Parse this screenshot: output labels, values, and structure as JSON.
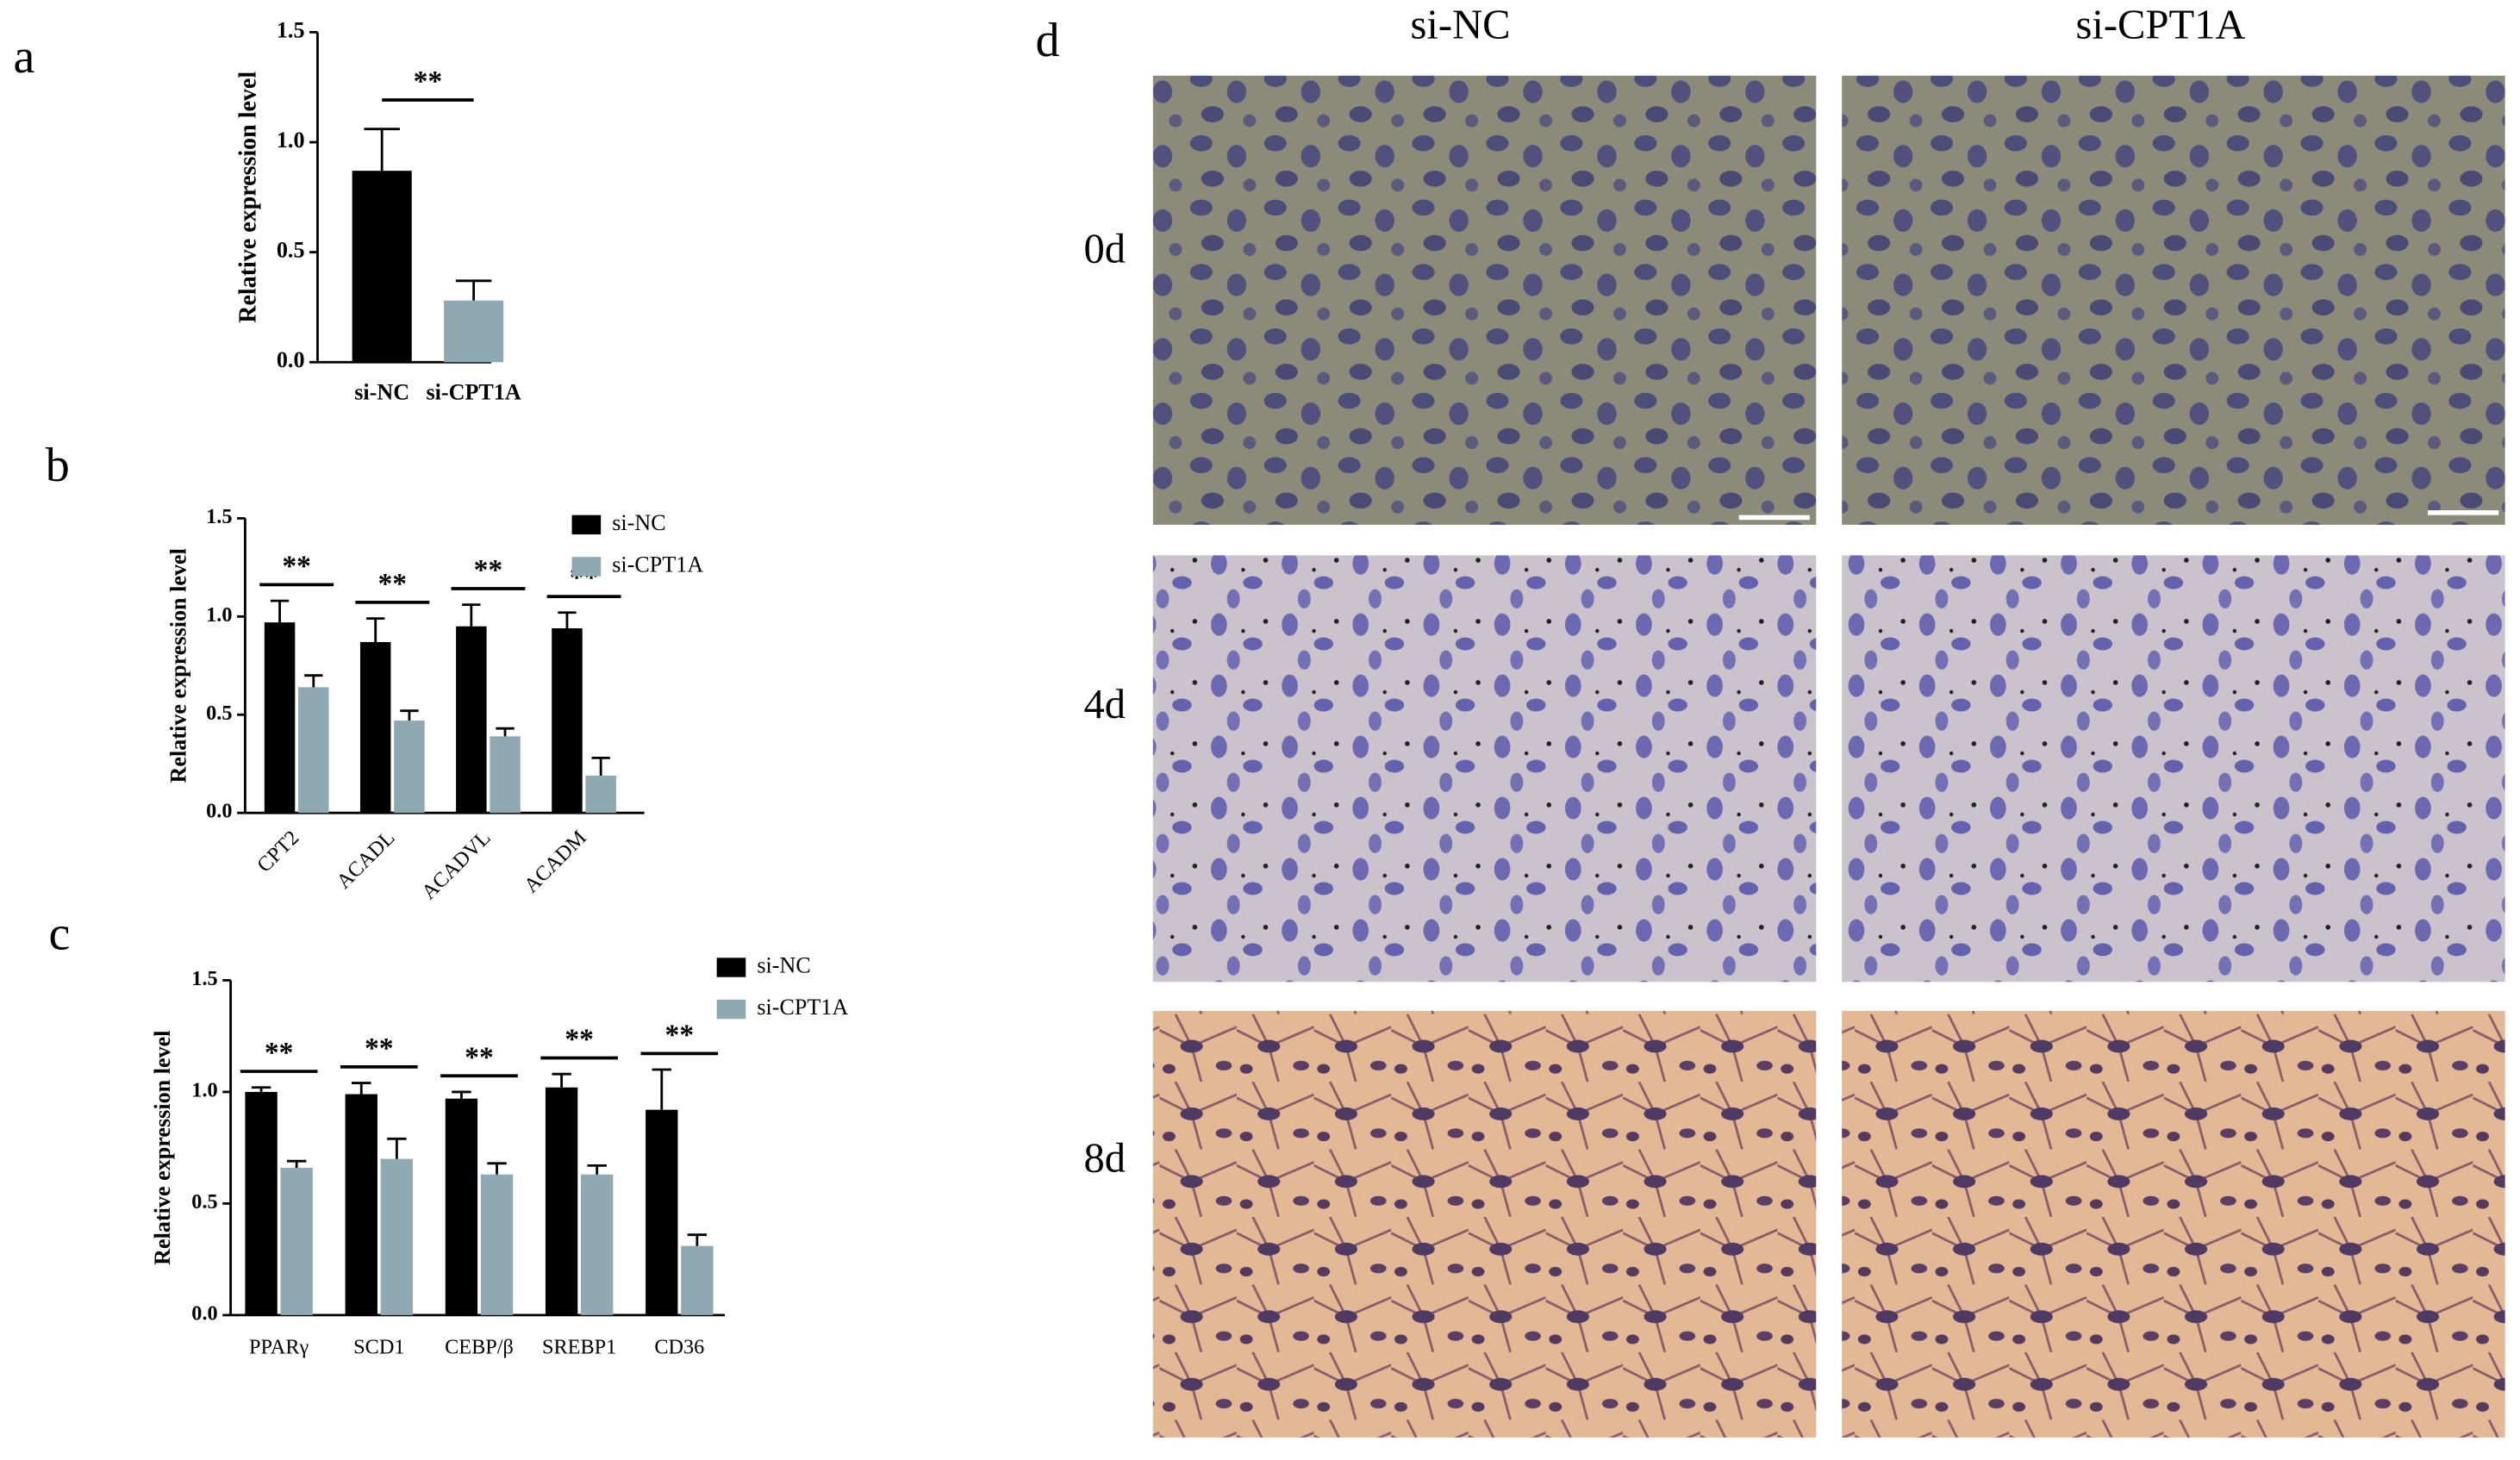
{
  "panels": [
    "a",
    "b",
    "c",
    "d"
  ],
  "chart_data": [
    {
      "type": "bar",
      "ylabel": "Relative expression level",
      "categories": [
        "si-NC",
        "si-CPT1A"
      ],
      "values": [
        0.87,
        0.28
      ],
      "errors": [
        0.19,
        0.09
      ],
      "colors": [
        "#000000",
        "#8fa9b3"
      ],
      "ylim": [
        0,
        1.5
      ],
      "yticks": [
        {
          "value": 0,
          "label": "0.0"
        },
        0.5,
        {
          "value": 1,
          "label": "1.0"
        },
        1.5
      ],
      "annotations": [
        "**"
      ]
    },
    {
      "type": "grouped-bar",
      "ylabel": "Relative expression level",
      "categories": [
        "CPT2",
        "ACADL",
        "ACADVL",
        "ACADM"
      ],
      "series": [
        {
          "name": "si-NC",
          "color": "#000000",
          "values": [
            0.97,
            0.87,
            0.95,
            0.94
          ],
          "errors": [
            0.11,
            0.12,
            0.11,
            0.08
          ]
        },
        {
          "name": "si-CPT1A",
          "color": "#8fa9b3",
          "values": [
            0.64,
            0.47,
            0.39,
            0.19
          ],
          "errors": [
            0.06,
            0.05,
            0.04,
            0.09
          ]
        }
      ],
      "ylim": [
        0,
        1.5
      ],
      "yticks": [
        {
          "value": 0,
          "label": "0.0"
        },
        0.5,
        {
          "value": 1,
          "label": "1.0"
        },
        1.5
      ],
      "annotations": [
        "**",
        "**",
        "**",
        "**"
      ],
      "legend": "upper right"
    },
    {
      "type": "grouped-bar",
      "ylabel": "Relative expression level",
      "categories": [
        "PPARγ",
        "SCD1",
        "CEBP/β",
        "SREBP1",
        "CD36"
      ],
      "series": [
        {
          "name": "si-NC",
          "color": "#000000",
          "values": [
            1.0,
            0.99,
            0.97,
            1.02,
            0.92
          ],
          "errors": [
            0.02,
            0.05,
            0.03,
            0.06,
            0.18
          ]
        },
        {
          "name": "si-CPT1A",
          "color": "#8fa9b3",
          "values": [
            0.66,
            0.7,
            0.63,
            0.63,
            0.31
          ],
          "errors": [
            0.03,
            0.09,
            0.05,
            0.04,
            0.05
          ]
        }
      ],
      "ylim": [
        0,
        1.5
      ],
      "yticks": [
        {
          "value": 0,
          "label": "0.0"
        },
        0.5,
        {
          "value": 1,
          "label": "1.0"
        },
        1.5
      ],
      "annotations": [
        "**",
        "**",
        "**",
        "**",
        "**"
      ],
      "legend": "upper right"
    }
  ],
  "panel_d": {
    "columns": [
      "si-NC",
      "si-CPT1A"
    ],
    "rows": [
      "0d",
      "4d",
      "8d"
    ]
  }
}
